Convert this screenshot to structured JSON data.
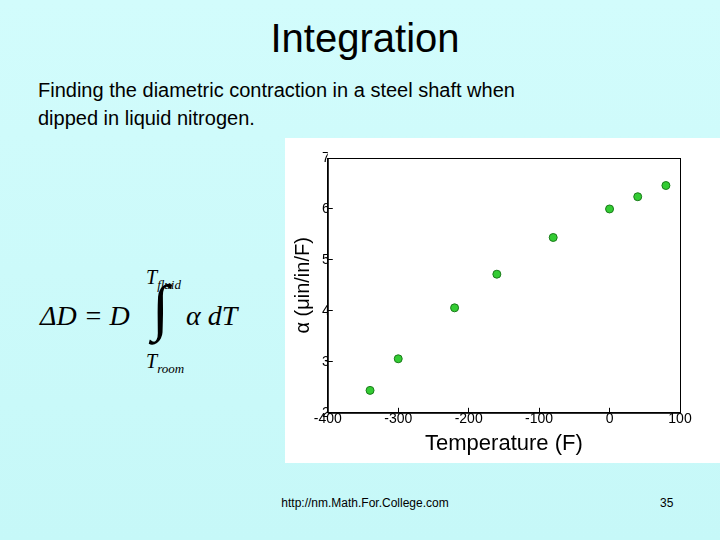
{
  "slide": {
    "title": "Integration",
    "description": [
      "Finding the diametric contraction in a steel shaft when",
      "dipped in liquid nitrogen."
    ],
    "formula": {
      "lhs": "ΔD = D",
      "operator": "∫",
      "integrand": "α dT",
      "upper": {
        "symbol": "T",
        "subscript": "fluid"
      },
      "lower": {
        "symbol": "T",
        "subscript": "room"
      }
    },
    "footer": "http://nm.Math.For.College.com",
    "page_number": "35"
  },
  "chart_data": {
    "type": "scatter",
    "x_label": "Temperature (F)",
    "y_label": "α (μin/in/F)",
    "x": [
      -340,
      -300,
      -220,
      -160,
      -80,
      0,
      40,
      80
    ],
    "values": [
      2.44,
      3.06,
      4.06,
      4.72,
      5.44,
      6.0,
      6.24,
      6.46
    ],
    "color": "#33cc33",
    "marker": "circle",
    "xlim": [
      -400,
      100
    ],
    "xticks": [
      -400,
      -300,
      -200,
      -100,
      0,
      100
    ],
    "ylim": [
      2,
      7
    ],
    "yticks": [
      2,
      3,
      4,
      5,
      6,
      7
    ],
    "grid": false
  }
}
